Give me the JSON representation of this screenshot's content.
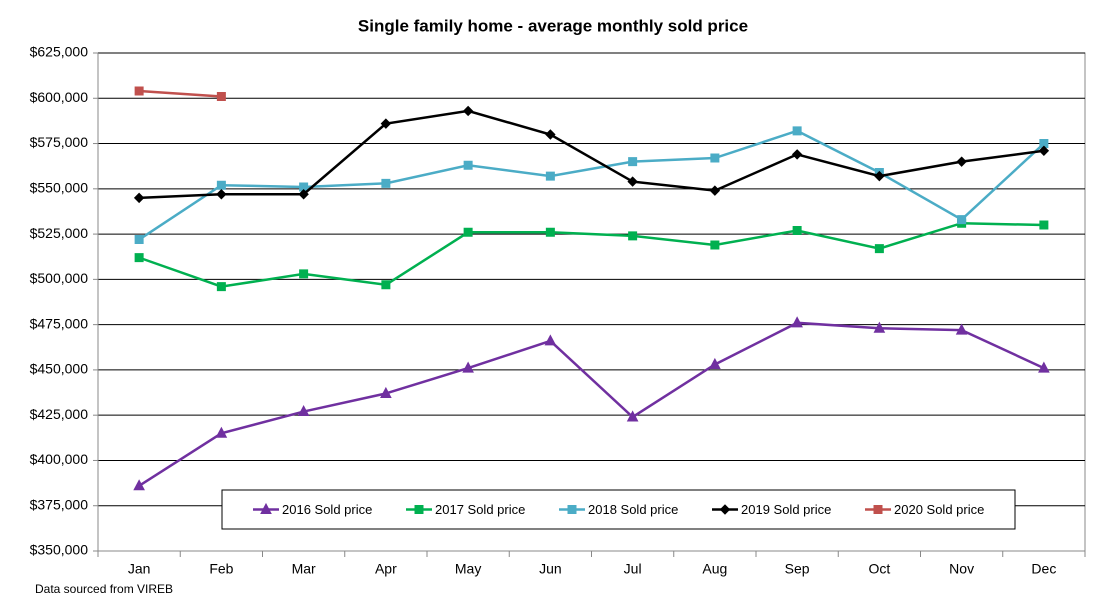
{
  "chart_data": {
    "type": "line",
    "title": "Single family home - average monthly sold price",
    "note": "Data sourced from VIREB",
    "categories": [
      "Jan",
      "Feb",
      "Mar",
      "Apr",
      "May",
      "Jun",
      "Jul",
      "Aug",
      "Sep",
      "Oct",
      "Nov",
      "Dec"
    ],
    "series": [
      {
        "name": "2016 Sold price",
        "color": "#7030a0",
        "marker": "triangle",
        "values": [
          386000,
          415000,
          427000,
          437000,
          451000,
          466000,
          424000,
          453000,
          476000,
          473000,
          472000,
          451000
        ]
      },
      {
        "name": "2017 Sold price",
        "color": "#00b050",
        "marker": "square",
        "values": [
          512000,
          496000,
          503000,
          497000,
          526000,
          526000,
          524000,
          519000,
          527000,
          517000,
          531000,
          530000
        ]
      },
      {
        "name": "2018 Sold price",
        "color": "#4bacc6",
        "marker": "square",
        "values": [
          522000,
          552000,
          551000,
          553000,
          563000,
          557000,
          565000,
          567000,
          582000,
          559000,
          533000,
          575000
        ]
      },
      {
        "name": "2019 Sold price",
        "color": "#000000",
        "marker": "diamond",
        "values": [
          545000,
          547000,
          547000,
          586000,
          593000,
          580000,
          554000,
          549000,
          569000,
          557000,
          565000,
          571000
        ]
      },
      {
        "name": "2020 Sold price",
        "color": "#c0504d",
        "marker": "square",
        "values": [
          604000,
          601000,
          null,
          null,
          null,
          null,
          null,
          null,
          null,
          null,
          null,
          null
        ]
      }
    ],
    "ylim": [
      350000,
      625000
    ],
    "yticks": [
      {
        "value": 350000,
        "label": "$350,000"
      },
      {
        "value": 375000,
        "label": "$375,000"
      },
      {
        "value": 400000,
        "label": "$400,000"
      },
      {
        "value": 425000,
        "label": "$425,000"
      },
      {
        "value": 450000,
        "label": "$450,000"
      },
      {
        "value": 475000,
        "label": "$475,000"
      },
      {
        "value": 500000,
        "label": "$500,000"
      },
      {
        "value": 525000,
        "label": "$525,000"
      },
      {
        "value": 550000,
        "label": "$550,000"
      },
      {
        "value": 575000,
        "label": "$575,000"
      },
      {
        "value": 600000,
        "label": "$600,000"
      },
      {
        "value": 625000,
        "label": "$625,000"
      }
    ],
    "grid": true,
    "legend": "bottom"
  }
}
